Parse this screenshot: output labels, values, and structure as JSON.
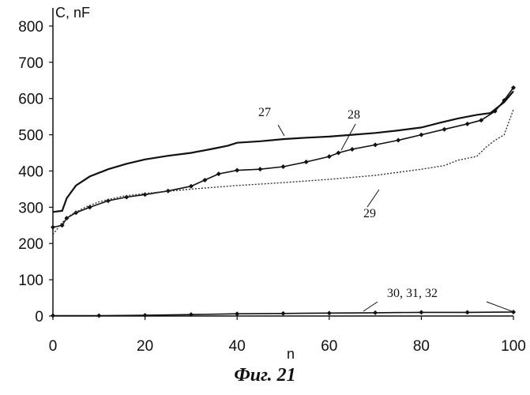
{
  "chart_data": {
    "type": "line",
    "ylabel": "C, nF",
    "xlabel": "n",
    "xlim": [
      0,
      100
    ],
    "ylim": [
      0,
      850
    ],
    "x_ticks": [
      "0",
      "20",
      "40",
      "60",
      "80",
      "100"
    ],
    "y_ticks": [
      "0",
      "100",
      "200",
      "300",
      "400",
      "500",
      "600",
      "700",
      "800"
    ],
    "grid": false,
    "series": [
      {
        "name": "27",
        "style": "solid",
        "points": [
          [
            0,
            287
          ],
          [
            2,
            290
          ],
          [
            3,
            325
          ],
          [
            5,
            360
          ],
          [
            8,
            385
          ],
          [
            12,
            405
          ],
          [
            16,
            420
          ],
          [
            20,
            432
          ],
          [
            25,
            442
          ],
          [
            30,
            450
          ],
          [
            35,
            462
          ],
          [
            38,
            470
          ],
          [
            40,
            478
          ],
          [
            45,
            482
          ],
          [
            50,
            488
          ],
          [
            55,
            492
          ],
          [
            60,
            495
          ],
          [
            65,
            500
          ],
          [
            70,
            505
          ],
          [
            75,
            512
          ],
          [
            80,
            520
          ],
          [
            84,
            533
          ],
          [
            88,
            545
          ],
          [
            92,
            555
          ],
          [
            95,
            560
          ],
          [
            98,
            590
          ],
          [
            100,
            620
          ]
        ]
      },
      {
        "name": "28",
        "style": "diamond",
        "points": [
          [
            0,
            245
          ],
          [
            2,
            250
          ],
          [
            3,
            270
          ],
          [
            5,
            285
          ],
          [
            8,
            300
          ],
          [
            12,
            318
          ],
          [
            16,
            328
          ],
          [
            20,
            335
          ],
          [
            25,
            345
          ],
          [
            30,
            358
          ],
          [
            33,
            375
          ],
          [
            36,
            392
          ],
          [
            40,
            402
          ],
          [
            45,
            405
          ],
          [
            50,
            412
          ],
          [
            55,
            425
          ],
          [
            60,
            440
          ],
          [
            62,
            450
          ],
          [
            65,
            460
          ],
          [
            70,
            472
          ],
          [
            75,
            485
          ],
          [
            80,
            500
          ],
          [
            85,
            515
          ],
          [
            90,
            530
          ],
          [
            93,
            540
          ],
          [
            96,
            565
          ],
          [
            98,
            595
          ],
          [
            100,
            630
          ]
        ]
      },
      {
        "name": "29",
        "style": "dotted",
        "points": [
          [
            0,
            225
          ],
          [
            2,
            258
          ],
          [
            4,
            280
          ],
          [
            7,
            300
          ],
          [
            10,
            315
          ],
          [
            15,
            330
          ],
          [
            20,
            338
          ],
          [
            30,
            350
          ],
          [
            40,
            360
          ],
          [
            50,
            368
          ],
          [
            60,
            377
          ],
          [
            70,
            388
          ],
          [
            80,
            405
          ],
          [
            85,
            415
          ],
          [
            88,
            430
          ],
          [
            92,
            440
          ],
          [
            94,
            465
          ],
          [
            96,
            485
          ],
          [
            98,
            500
          ],
          [
            100,
            570
          ]
        ]
      },
      {
        "name": "30, 31, 32",
        "style": "diamond",
        "points": [
          [
            0,
            1
          ],
          [
            10,
            1
          ],
          [
            20,
            2
          ],
          [
            30,
            4
          ],
          [
            40,
            6
          ],
          [
            50,
            7
          ],
          [
            60,
            8
          ],
          [
            70,
            9
          ],
          [
            80,
            10
          ],
          [
            90,
            10
          ],
          [
            100,
            11
          ]
        ]
      }
    ],
    "annotations": [
      {
        "text": "27",
        "series": "27"
      },
      {
        "text": "28",
        "series": "28"
      },
      {
        "text": "29",
        "series": "29"
      },
      {
        "text": "30, 31, 32",
        "series": "30, 31, 32"
      }
    ],
    "caption": "Фиг. 21"
  }
}
